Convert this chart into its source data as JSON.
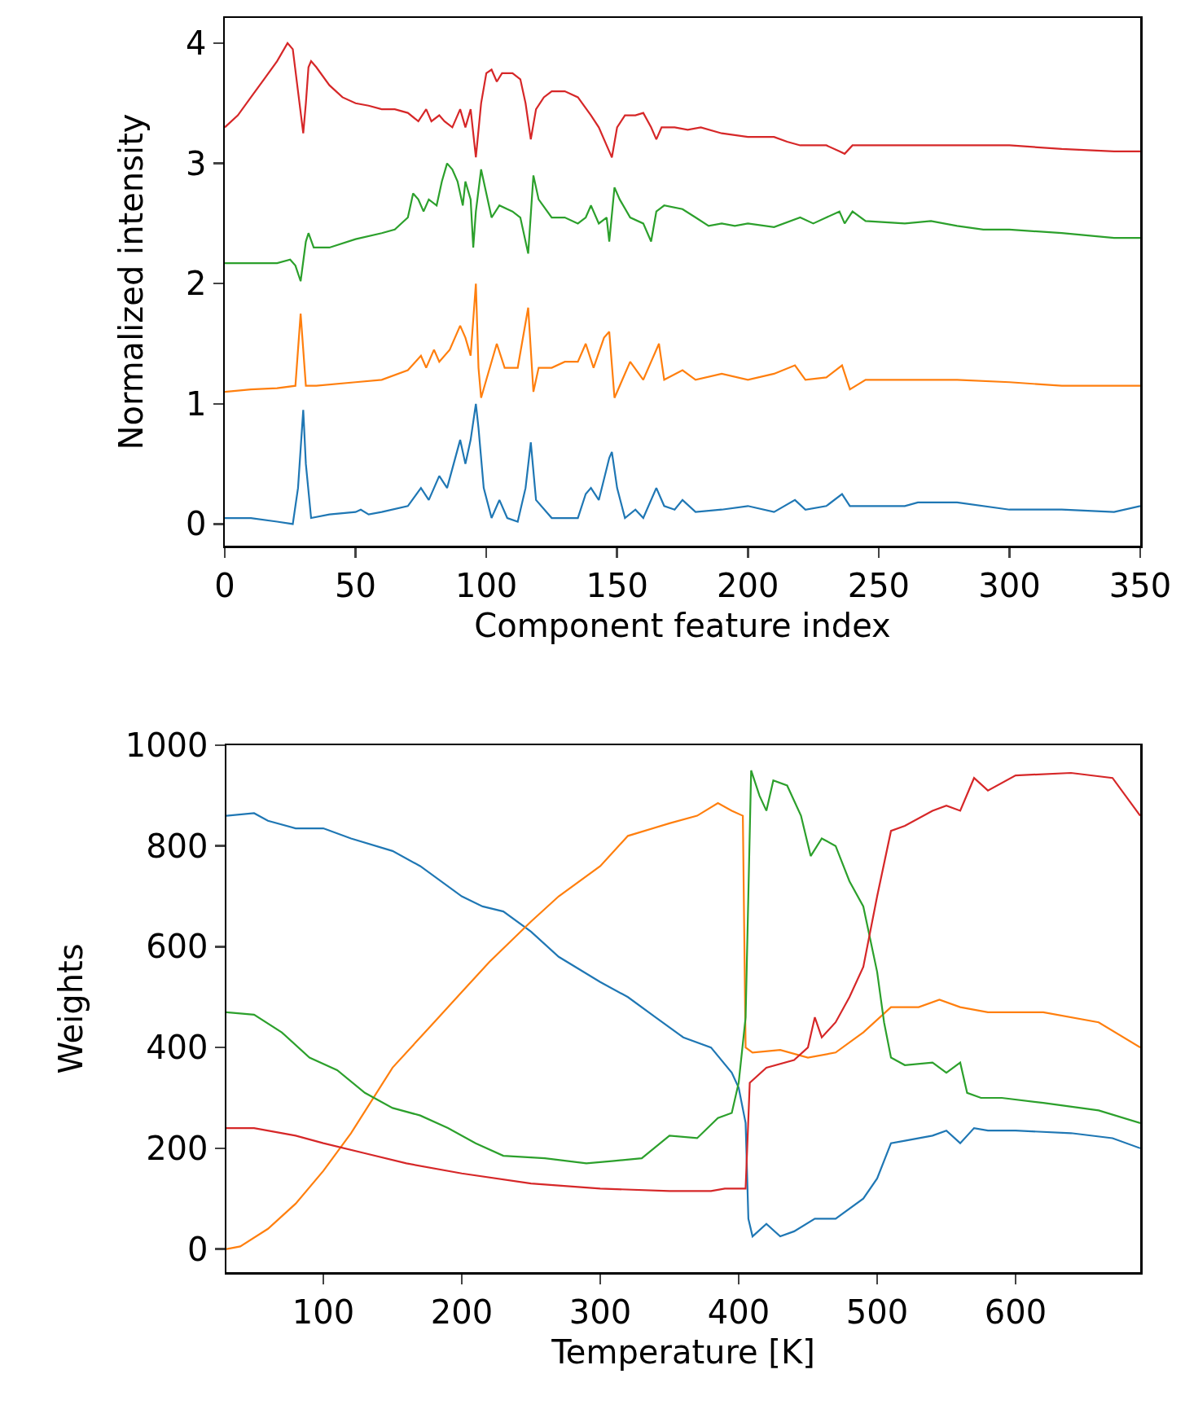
{
  "chart_data": [
    {
      "type": "line",
      "xlabel": "Component feature index",
      "ylabel": "Normalized intensity",
      "xlim": [
        0,
        350
      ],
      "ylim": [
        -0.18,
        4.21
      ],
      "xticks": [
        0,
        50,
        100,
        150,
        200,
        250,
        300,
        350
      ],
      "yticks": [
        0,
        1,
        2,
        3,
        4
      ],
      "grid": false,
      "marker": "none",
      "line_style": "solid",
      "series": [
        {
          "color": "#d62728",
          "x": [
            0,
            5,
            10,
            15,
            20,
            24,
            26,
            28,
            30,
            31,
            32,
            33,
            35,
            40,
            45,
            50,
            55,
            60,
            65,
            70,
            74,
            77,
            79,
            82,
            84,
            87,
            90,
            92,
            94,
            96,
            98,
            100,
            102,
            104,
            106,
            110,
            113,
            115,
            117,
            119,
            122,
            125,
            130,
            135,
            140,
            143,
            147,
            148,
            150,
            153,
            157,
            160,
            163,
            165,
            167,
            172,
            177,
            182,
            190,
            200,
            210,
            215,
            220,
            230,
            235,
            237,
            240,
            250,
            260,
            280,
            300,
            320,
            340,
            350
          ],
          "values": [
            3.3,
            3.4,
            3.55,
            3.7,
            3.85,
            4.0,
            3.95,
            3.6,
            3.25,
            3.5,
            3.8,
            3.85,
            3.8,
            3.65,
            3.55,
            3.5,
            3.48,
            3.45,
            3.45,
            3.42,
            3.35,
            3.45,
            3.35,
            3.4,
            3.35,
            3.3,
            3.45,
            3.3,
            3.45,
            3.05,
            3.5,
            3.75,
            3.78,
            3.68,
            3.75,
            3.75,
            3.7,
            3.5,
            3.2,
            3.45,
            3.55,
            3.6,
            3.6,
            3.55,
            3.4,
            3.3,
            3.1,
            3.05,
            3.3,
            3.4,
            3.4,
            3.42,
            3.3,
            3.2,
            3.3,
            3.3,
            3.28,
            3.3,
            3.25,
            3.22,
            3.22,
            3.18,
            3.15,
            3.15,
            3.1,
            3.08,
            3.15,
            3.15,
            3.15,
            3.15,
            3.15,
            3.12,
            3.1,
            3.1
          ]
        },
        {
          "color": "#2ca02c",
          "x": [
            0,
            10,
            20,
            25,
            27,
            29,
            31,
            32,
            34,
            40,
            50,
            60,
            65,
            70,
            72,
            74,
            76,
            78,
            81,
            83,
            85,
            87,
            89,
            91,
            92,
            94,
            95,
            96,
            98,
            100,
            102,
            105,
            110,
            113,
            116,
            118,
            120,
            125,
            130,
            135,
            138,
            140,
            143,
            146,
            147,
            149,
            151,
            155,
            160,
            163,
            165,
            168,
            175,
            180,
            185,
            190,
            195,
            200,
            210,
            220,
            225,
            230,
            235,
            237,
            240,
            245,
            260,
            270,
            280,
            290,
            300,
            320,
            340,
            350
          ],
          "values": [
            2.17,
            2.17,
            2.17,
            2.2,
            2.15,
            2.02,
            2.35,
            2.42,
            2.3,
            2.3,
            2.37,
            2.42,
            2.45,
            2.55,
            2.75,
            2.7,
            2.6,
            2.7,
            2.65,
            2.85,
            3.0,
            2.95,
            2.85,
            2.65,
            2.85,
            2.7,
            2.3,
            2.6,
            2.95,
            2.75,
            2.55,
            2.65,
            2.6,
            2.55,
            2.25,
            2.9,
            2.7,
            2.55,
            2.55,
            2.5,
            2.55,
            2.65,
            2.5,
            2.55,
            2.35,
            2.8,
            2.7,
            2.55,
            2.5,
            2.35,
            2.6,
            2.65,
            2.62,
            2.55,
            2.48,
            2.5,
            2.48,
            2.5,
            2.47,
            2.55,
            2.5,
            2.55,
            2.6,
            2.5,
            2.6,
            2.52,
            2.5,
            2.52,
            2.48,
            2.45,
            2.45,
            2.42,
            2.38,
            2.38
          ]
        },
        {
          "color": "#ff7f0e",
          "x": [
            0,
            10,
            20,
            27,
            29,
            31,
            35,
            50,
            60,
            70,
            75,
            77,
            80,
            82,
            86,
            90,
            92,
            94,
            96,
            97,
            98,
            100,
            104,
            107,
            112,
            116,
            118,
            120,
            125,
            130,
            135,
            138,
            141,
            145,
            147,
            149,
            152,
            155,
            160,
            163,
            166,
            168,
            175,
            180,
            190,
            200,
            210,
            218,
            222,
            230,
            236,
            239,
            245,
            260,
            280,
            300,
            320,
            335,
            350
          ],
          "values": [
            1.1,
            1.12,
            1.13,
            1.15,
            1.75,
            1.15,
            1.15,
            1.18,
            1.2,
            1.28,
            1.4,
            1.3,
            1.45,
            1.35,
            1.45,
            1.65,
            1.55,
            1.4,
            2.0,
            1.3,
            1.05,
            1.2,
            1.5,
            1.3,
            1.3,
            1.8,
            1.1,
            1.3,
            1.3,
            1.35,
            1.35,
            1.5,
            1.3,
            1.55,
            1.6,
            1.05,
            1.2,
            1.35,
            1.2,
            1.35,
            1.5,
            1.2,
            1.28,
            1.2,
            1.25,
            1.2,
            1.25,
            1.32,
            1.2,
            1.22,
            1.32,
            1.12,
            1.2,
            1.2,
            1.2,
            1.18,
            1.15,
            1.15,
            1.15
          ]
        },
        {
          "color": "#1f77b4",
          "x": [
            0,
            10,
            20,
            26,
            28,
            30,
            31,
            33,
            40,
            50,
            52,
            55,
            60,
            70,
            75,
            78,
            82,
            85,
            90,
            92,
            94,
            96,
            97,
            99,
            102,
            105,
            108,
            112,
            115,
            117,
            119,
            125,
            130,
            135,
            138,
            140,
            143,
            147,
            148,
            150,
            153,
            157,
            160,
            165,
            168,
            172,
            175,
            180,
            190,
            200,
            210,
            218,
            222,
            230,
            236,
            239,
            250,
            260,
            265,
            280,
            300,
            320,
            340,
            350
          ],
          "values": [
            0.05,
            0.05,
            0.02,
            0.0,
            0.3,
            0.95,
            0.5,
            0.05,
            0.08,
            0.1,
            0.12,
            0.08,
            0.1,
            0.15,
            0.3,
            0.2,
            0.4,
            0.3,
            0.7,
            0.5,
            0.7,
            1.0,
            0.8,
            0.3,
            0.05,
            0.2,
            0.05,
            0.02,
            0.3,
            0.68,
            0.2,
            0.05,
            0.05,
            0.05,
            0.25,
            0.3,
            0.2,
            0.55,
            0.6,
            0.3,
            0.05,
            0.12,
            0.05,
            0.3,
            0.15,
            0.12,
            0.2,
            0.1,
            0.12,
            0.15,
            0.1,
            0.2,
            0.12,
            0.15,
            0.25,
            0.15,
            0.15,
            0.15,
            0.18,
            0.18,
            0.12,
            0.12,
            0.1,
            0.15
          ]
        }
      ]
    },
    {
      "type": "line",
      "xlabel": "Temperature [K]",
      "ylabel": "Weights",
      "xlim": [
        30,
        690
      ],
      "ylim": [
        -46,
        1000
      ],
      "xticks": [
        100,
        200,
        300,
        400,
        500,
        600
      ],
      "yticks": [
        0,
        200,
        400,
        600,
        800,
        1000
      ],
      "grid": false,
      "marker": "none",
      "line_style": "solid",
      "series": [
        {
          "color": "#1f77b4",
          "x": [
            30,
            50,
            60,
            80,
            100,
            120,
            150,
            170,
            200,
            215,
            230,
            250,
            270,
            300,
            320,
            340,
            360,
            380,
            395,
            400,
            405,
            407,
            410,
            420,
            430,
            440,
            455,
            470,
            490,
            500,
            510,
            520,
            540,
            550,
            560,
            570,
            580,
            600,
            640,
            670,
            690
          ],
          "values": [
            860,
            865,
            850,
            835,
            835,
            815,
            790,
            760,
            700,
            680,
            670,
            630,
            580,
            530,
            500,
            460,
            420,
            400,
            350,
            320,
            250,
            60,
            25,
            50,
            25,
            35,
            60,
            60,
            100,
            140,
            210,
            215,
            225,
            235,
            210,
            240,
            235,
            235,
            230,
            220,
            200
          ]
        },
        {
          "color": "#ff7f0e",
          "x": [
            30,
            40,
            60,
            80,
            100,
            120,
            150,
            180,
            200,
            220,
            250,
            270,
            300,
            320,
            350,
            370,
            385,
            395,
            403,
            405,
            410,
            430,
            450,
            470,
            490,
            510,
            530,
            545,
            560,
            580,
            620,
            660,
            690
          ],
          "values": [
            0,
            5,
            40,
            90,
            155,
            230,
            360,
            450,
            510,
            570,
            650,
            700,
            760,
            820,
            845,
            860,
            885,
            870,
            860,
            400,
            390,
            395,
            380,
            390,
            430,
            480,
            480,
            495,
            480,
            470,
            470,
            450,
            400
          ]
        },
        {
          "color": "#2ca02c",
          "x": [
            30,
            50,
            70,
            90,
            110,
            130,
            150,
            170,
            190,
            210,
            230,
            260,
            290,
            310,
            330,
            350,
            370,
            385,
            395,
            400,
            405,
            409,
            415,
            420,
            425,
            435,
            445,
            452,
            460,
            470,
            480,
            490,
            500,
            505,
            510,
            520,
            540,
            550,
            560,
            565,
            575,
            590,
            620,
            660,
            690
          ],
          "values": [
            470,
            465,
            430,
            380,
            355,
            310,
            280,
            265,
            240,
            210,
            185,
            180,
            170,
            175,
            180,
            225,
            220,
            260,
            270,
            330,
            460,
            950,
            900,
            870,
            930,
            920,
            860,
            780,
            815,
            800,
            730,
            680,
            550,
            450,
            380,
            365,
            370,
            350,
            370,
            310,
            300,
            300,
            290,
            275,
            250
          ]
        },
        {
          "color": "#d62728",
          "x": [
            30,
            50,
            80,
            100,
            130,
            160,
            200,
            250,
            300,
            350,
            380,
            390,
            405,
            408,
            420,
            440,
            450,
            455,
            460,
            470,
            480,
            490,
            500,
            510,
            520,
            540,
            550,
            560,
            570,
            580,
            600,
            640,
            670,
            690
          ],
          "values": [
            240,
            240,
            225,
            210,
            190,
            170,
            150,
            130,
            120,
            115,
            115,
            120,
            120,
            330,
            360,
            375,
            400,
            460,
            420,
            450,
            500,
            560,
            700,
            830,
            840,
            870,
            880,
            870,
            935,
            910,
            940,
            945,
            935,
            860
          ]
        }
      ]
    }
  ]
}
